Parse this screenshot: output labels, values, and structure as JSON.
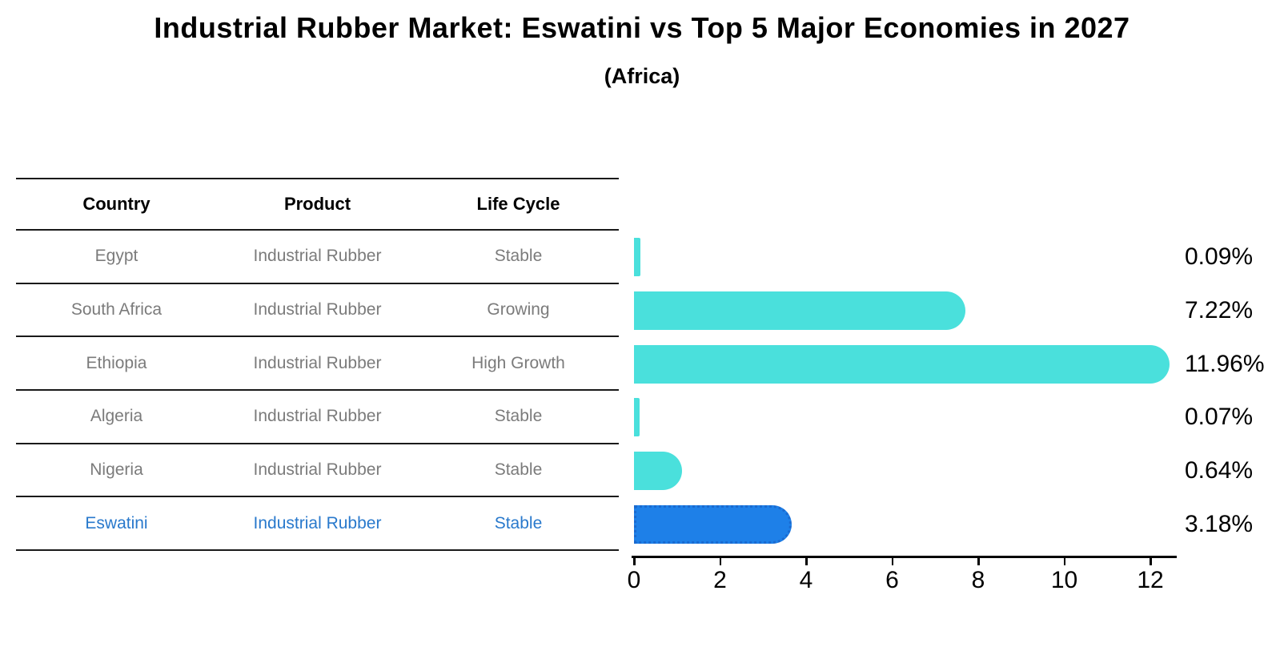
{
  "title": "Industrial Rubber Market: Eswatini vs Top 5 Major Economies in 2027",
  "subtitle": "(Africa)",
  "table": {
    "headers": [
      "Country",
      "Product",
      "Life Cycle"
    ],
    "rows": [
      {
        "country": "Egypt",
        "product": "Industrial Rubber",
        "life_cycle": "Stable",
        "highlight": false
      },
      {
        "country": "South Africa",
        "product": "Industrial Rubber",
        "life_cycle": "Growing",
        "highlight": false
      },
      {
        "country": "Ethiopia",
        "product": "Industrial Rubber",
        "life_cycle": "High Growth",
        "highlight": false
      },
      {
        "country": "Algeria",
        "product": "Industrial Rubber",
        "life_cycle": "Stable",
        "highlight": false
      },
      {
        "country": "Nigeria",
        "product": "Industrial Rubber",
        "life_cycle": "Stable",
        "highlight": false
      },
      {
        "country": "Eswatini",
        "product": "Industrial Rubber",
        "life_cycle": "Stable",
        "highlight": true
      }
    ]
  },
  "chart_data": {
    "type": "bar",
    "orientation": "horizontal",
    "title": "Industrial Rubber Market: Eswatini vs Top 5 Major Economies in 2027 (Africa)",
    "categories": [
      "Egypt",
      "South Africa",
      "Ethiopia",
      "Algeria",
      "Nigeria",
      "Eswatini"
    ],
    "values": [
      0.09,
      7.22,
      11.96,
      0.07,
      0.64,
      3.18
    ],
    "value_labels": [
      "0.09%",
      "7.22%",
      "11.96%",
      "0.07%",
      "0.64%",
      "3.18%"
    ],
    "x_ticks": [
      0,
      2,
      4,
      6,
      8,
      10,
      12
    ],
    "xlim": [
      0,
      12.6
    ],
    "xlabel": "",
    "ylabel": "",
    "grid": false,
    "legend": "none",
    "bar_color": "#4ae0dc",
    "highlight_color": "#1e80e8",
    "highlight_border_color": "#1a6ad0",
    "highlight_index": 5
  },
  "colors": {
    "text": "#000000",
    "table_body_text": "#7b7b7b",
    "highlight_text": "#2979cc",
    "line": "#1a1a1a"
  }
}
